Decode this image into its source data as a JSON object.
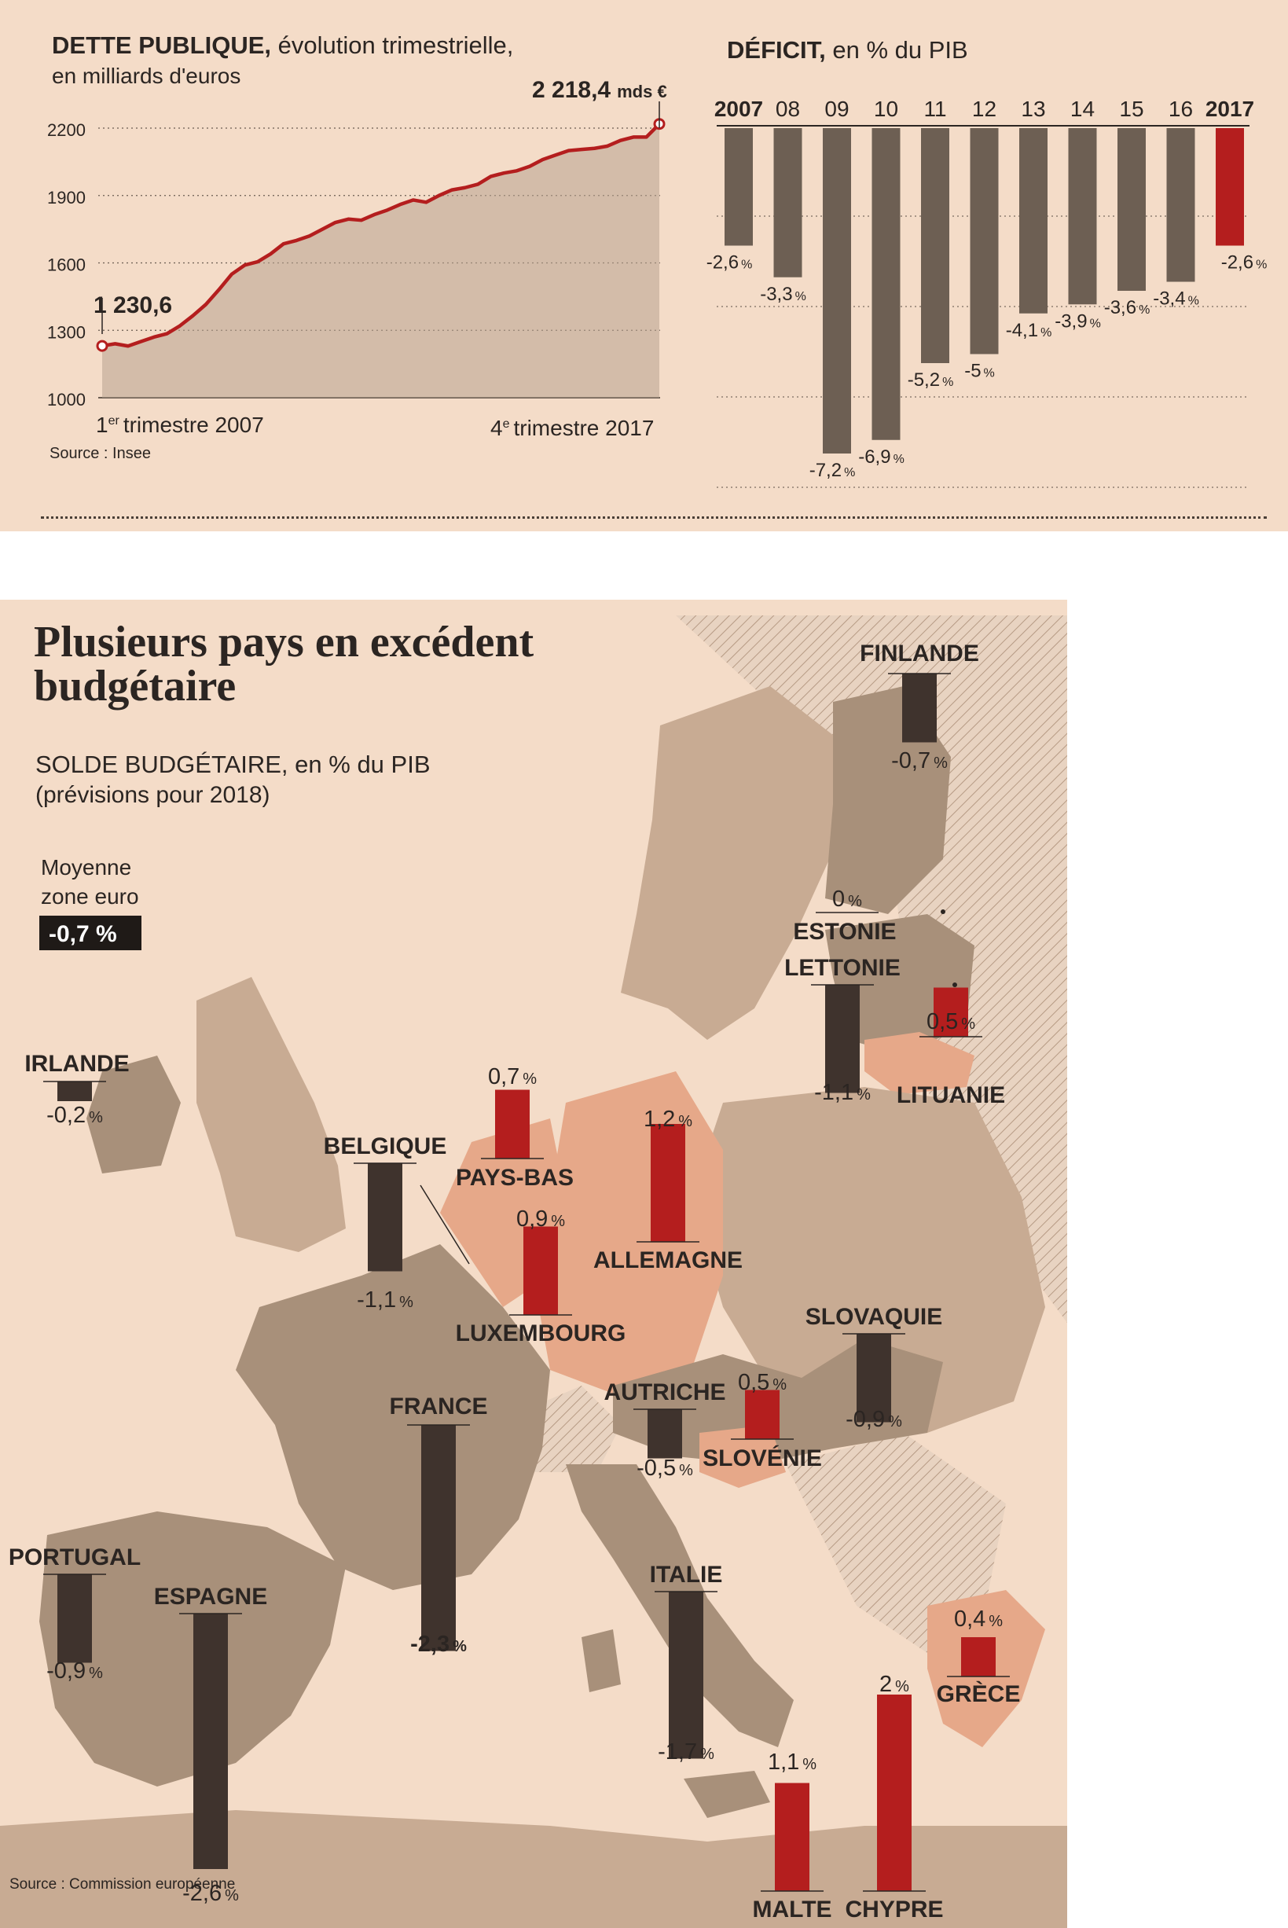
{
  "colors": {
    "deficit_bar": "#6d5f53",
    "highlight": "#b41e1e",
    "surplus": "#b41e1e",
    "negative_map": "#3f332d",
    "paper": "#f4dcc8",
    "land": "#c8ab93",
    "country_eu": "#a8907a",
    "surplus_country": "#e6a889"
  },
  "dette": {
    "title_bold": "DETTE PUBLIQUE,",
    "title_rest": " évolution trimestrielle,",
    "subtitle": "en milliards d'euros",
    "first_value": "1 230,6",
    "last_value": "2 218,4",
    "last_unit": "mds €",
    "x_start_label": "trimestre 2007",
    "x_start_num": "1",
    "x_start_sup": "er",
    "x_end_label": "trimestre 2017",
    "x_end_num": "4",
    "x_end_sup": "e",
    "source": "Source : Insee"
  },
  "deficit": {
    "title_bold": "DÉFICIT,",
    "title_rest": " en % du PIB",
    "pct": "%"
  },
  "solde": {
    "headline_1": "Plusieurs pays en excédent",
    "headline_2": "budgétaire",
    "title_bold": "SOLDE BUDGÉTAIRE,",
    "title_rest": " en % du PIB",
    "subtitle": "(prévisions pour 2018)",
    "avg_label_1": "Moyenne",
    "avg_label_2": "zone euro",
    "avg_value": "-0,7 %",
    "source": "Source : Commission européenne",
    "pct": "%"
  },
  "chart_data": [
    {
      "type": "line",
      "title": "DETTE PUBLIQUE, évolution trimestrielle, en milliards d'euros",
      "unit": "milliards d'euros",
      "x_start": "1er trimestre 2007",
      "x_end": "4e trimestre 2017",
      "y_ticks": [
        2200,
        1900,
        1600,
        1300,
        1000
      ],
      "ylim": [
        1000,
        2300
      ],
      "grid": true,
      "values": [
        1230.6,
        1240,
        1230,
        1250,
        1270,
        1285,
        1320,
        1365,
        1415,
        1480,
        1550,
        1590,
        1605,
        1640,
        1685,
        1700,
        1720,
        1750,
        1780,
        1795,
        1790,
        1815,
        1835,
        1860,
        1880,
        1870,
        1900,
        1925,
        1935,
        1950,
        1985,
        2000,
        2010,
        2030,
        2060,
        2080,
        2100,
        2105,
        2110,
        2120,
        2145,
        2160,
        2160,
        2218.4
      ],
      "annotations": [
        {
          "label": "1 230,6",
          "value": 1230.6
        },
        {
          "label": "2 218,4 mds €",
          "value": 2218.4
        }
      ]
    },
    {
      "type": "bar",
      "title": "DÉFICIT, en % du PIB",
      "categories": [
        "2007",
        "08",
        "09",
        "10",
        "11",
        "12",
        "13",
        "14",
        "15",
        "16",
        "2017"
      ],
      "values": [
        -2.6,
        -3.3,
        -7.2,
        -6.9,
        -5.2,
        -5,
        -4.1,
        -3.9,
        -3.6,
        -3.4,
        -2.6
      ],
      "value_labels": [
        "-2,6",
        "-3,3",
        "-7,2",
        "-6,9",
        "-5,2",
        "-5",
        "-4,1",
        "-3,9",
        "-3,6",
        "-3,4",
        "-2,6"
      ],
      "highlight": "2017"
    },
    {
      "type": "bar",
      "title": "SOLDE BUDGÉTAIRE, en % du PIB (prévisions pour 2018)",
      "average_label": "Moyenne zone euro",
      "average": -0.7,
      "categories": [
        "FINLANDE",
        "ESTONIE",
        "LETTONIE",
        "LITUANIE",
        "IRLANDE",
        "PAYS-BAS",
        "ALLEMAGNE",
        "BELGIQUE",
        "LUXEMBOURG",
        "SLOVAQUIE",
        "AUTRICHE",
        "SLOVÉNIE",
        "FRANCE",
        "PORTUGAL",
        "ESPAGNE",
        "ITALIE",
        "GRÈCE",
        "MALTE",
        "CHYPRE"
      ],
      "values": [
        -0.7,
        0,
        -1.1,
        0.5,
        -0.2,
        0.7,
        1.2,
        -1.1,
        0.9,
        -0.9,
        -0.5,
        0.5,
        -2.3,
        -0.9,
        -2.6,
        -1.7,
        0.4,
        1.1,
        2
      ],
      "value_labels": [
        "-0,7",
        "0",
        "-1,1",
        "0,5",
        "-0,2",
        "0,7",
        "1,2",
        "-1,1",
        "0,9",
        "-0,9",
        "-0,5",
        "0,5",
        "-2,3",
        "-0,9",
        "-2,6",
        "-1,7",
        "0,4",
        "1,1",
        "2"
      ]
    }
  ]
}
